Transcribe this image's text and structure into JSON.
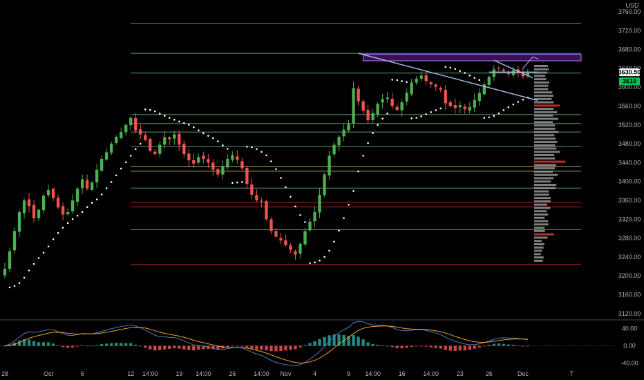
{
  "currency_label": "USD",
  "colors": {
    "background": "#000000",
    "up": "#26a69a",
    "down": "#ef5350",
    "up_bright": "#4caf50",
    "grid_line": "#b2b5be",
    "level_green": "#6fcf97",
    "level_yellow": "#f0e68c",
    "level_red": "#e53935",
    "trend_line": "#9fb6e8",
    "zone_fill": "#6a1b9a",
    "zone_stroke": "#b388ff",
    "price_tag_bg": "#ffffff",
    "price_tag_green": "#00c853",
    "macd_line": "#4e7cc2",
    "signal_line": "#f0a030",
    "volume_profile": "#9e9e9e",
    "volume_profile_highlight": "#e53935"
  },
  "price_tags": {
    "last": "3630.50",
    "secondary": "3619"
  },
  "chart_data": [
    {
      "type": "candlestick",
      "title": "",
      "ylabel": "",
      "y_ticks": [
        3120,
        3160,
        3200,
        3240,
        3280,
        3320,
        3360,
        3400,
        3440,
        3480,
        3520,
        3560,
        3600,
        3640,
        3680,
        3720,
        3760
      ],
      "y_tick_labels": [
        "3120.00",
        "3160.00",
        "3200.00",
        "3240.00",
        "3280.00",
        "3320.00",
        "3360.00",
        "3400.00",
        "3440.00",
        "3480.00",
        "3520.00",
        "3560.00",
        "3600.00",
        "3640.00",
        "3680.00",
        "3720.00",
        "3760.00"
      ],
      "ylim": [
        3108,
        3785
      ],
      "x_ticks": [
        {
          "label": "28",
          "x": 0
        },
        {
          "label": "Oct",
          "x": 9
        },
        {
          "label": "6",
          "x": 16
        },
        {
          "label": "12",
          "x": 26
        },
        {
          "label": "14:00",
          "x": 30
        },
        {
          "label": "19",
          "x": 36
        },
        {
          "label": "14:00",
          "x": 41
        },
        {
          "label": "26",
          "x": 47
        },
        {
          "label": "14:00",
          "x": 53
        },
        {
          "label": "Nov",
          "x": 58
        },
        {
          "label": "4",
          "x": 64
        },
        {
          "label": "9",
          "x": 71
        },
        {
          "label": "14:00",
          "x": 76
        },
        {
          "label": "16",
          "x": 82
        },
        {
          "label": "14:00",
          "x": 88
        },
        {
          "label": "23",
          "x": 94
        },
        {
          "label": "26",
          "x": 100
        },
        {
          "label": "Dec",
          "x": 107
        },
        {
          "label": "7",
          "x": 117
        }
      ],
      "x_range": [
        -1,
        126
      ],
      "closes": [
        3215,
        3252,
        3295,
        3335,
        3360,
        3348,
        3322,
        3340,
        3370,
        3382,
        3365,
        3345,
        3330,
        3335,
        3360,
        3385,
        3405,
        3385,
        3398,
        3425,
        3448,
        3462,
        3480,
        3495,
        3505,
        3520,
        3535,
        3508,
        3500,
        3488,
        3465,
        3458,
        3478,
        3494,
        3490,
        3500,
        3478,
        3458,
        3445,
        3438,
        3452,
        3448,
        3440,
        3425,
        3415,
        3432,
        3448,
        3456,
        3446,
        3428,
        3395,
        3372,
        3360,
        3358,
        3320,
        3295,
        3283,
        3275,
        3265,
        3255,
        3245,
        3268,
        3295,
        3315,
        3335,
        3372,
        3415,
        3455,
        3478,
        3495,
        3510,
        3522,
        3598,
        3570,
        3550,
        3530,
        3545,
        3565,
        3575,
        3578,
        3560,
        3552,
        3568,
        3588,
        3610,
        3618,
        3625,
        3613,
        3606,
        3601,
        3595,
        3566,
        3560,
        3556,
        3562,
        3553,
        3558,
        3573,
        3588,
        3606,
        3622,
        3638,
        3640,
        3634,
        3628,
        3636,
        3630,
        3623,
        3631
      ],
      "series": [
        {
          "name": "",
          "kind": "parabolic_sar_dots"
        },
        {
          "name": "",
          "kind": "macd",
          "y_ticks": [
            -40,
            0,
            40
          ],
          "y_tick_labels": [
            "-40.00",
            "0.00",
            "40.00"
          ],
          "ylim": [
            -50,
            55
          ]
        }
      ],
      "horizontal_levels": [
        {
          "price": 3735,
          "color": "grid"
        },
        {
          "price": 3672,
          "color": "green"
        },
        {
          "price": 3630,
          "color": "green"
        },
        {
          "price": 3542,
          "color": "green"
        },
        {
          "price": 3523,
          "color": "green"
        },
        {
          "price": 3505,
          "color": "green"
        },
        {
          "price": 3474,
          "color": "green"
        },
        {
          "price": 3432,
          "color": "yellow"
        },
        {
          "price": 3422,
          "color": "yellow"
        },
        {
          "price": 3386,
          "color": "green"
        },
        {
          "price": 3356,
          "color": "red"
        },
        {
          "price": 3346,
          "color": "red"
        },
        {
          "price": 3298,
          "color": "green"
        },
        {
          "price": 3224,
          "color": "red"
        }
      ],
      "resistance_zone": {
        "x_start": 74,
        "x_end": 119,
        "price_low": 3656,
        "price_high": 3670
      },
      "trend_lines": [
        {
          "x1": 73,
          "p1": 3672,
          "x2": 110,
          "p2": 3572
        },
        {
          "x1": 100,
          "p1": 3632,
          "x2": 110,
          "p2": 3632
        },
        {
          "x1": 101,
          "p1": 3657,
          "x2": 109,
          "p2": 3620
        }
      ],
      "legend": "none",
      "grid": false
    }
  ]
}
